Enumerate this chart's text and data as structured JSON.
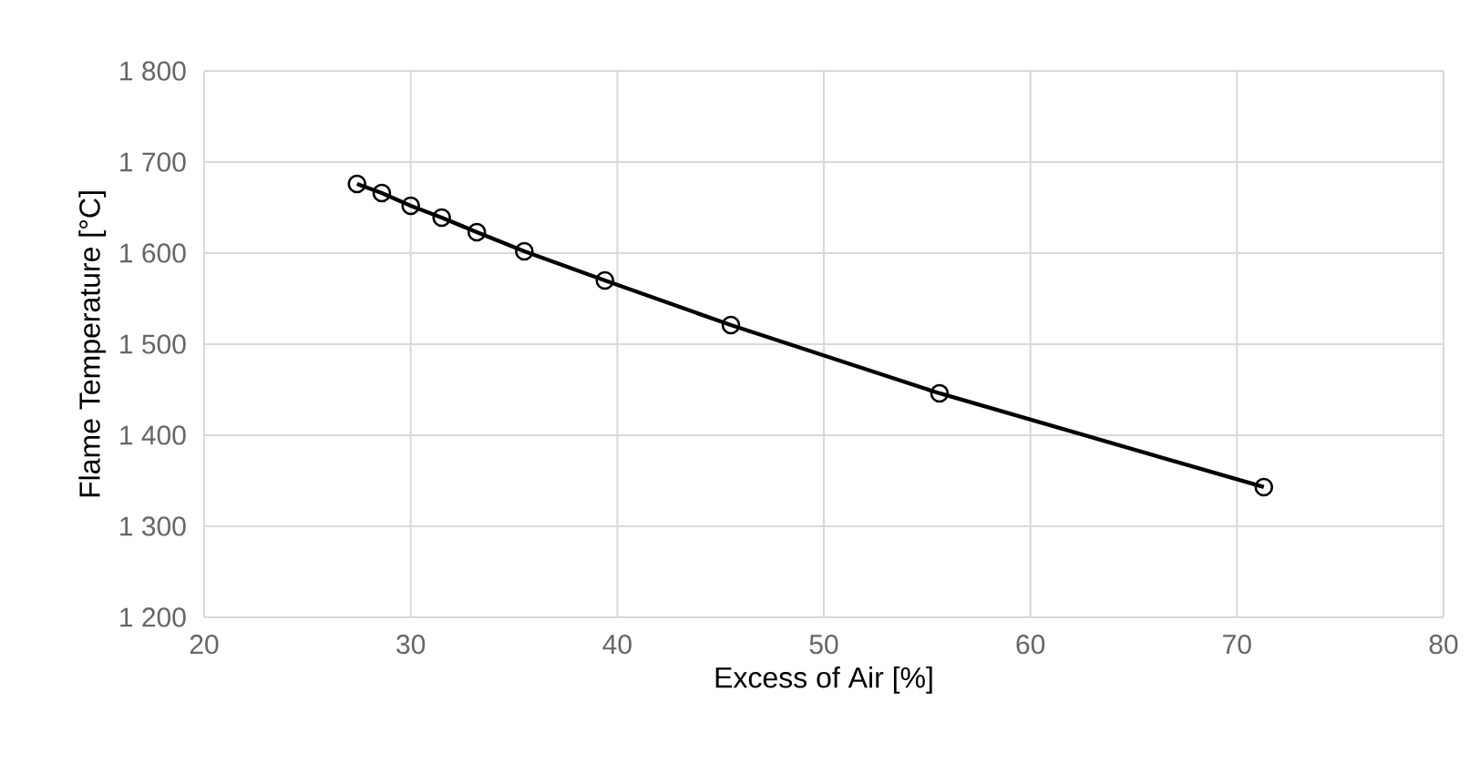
{
  "chart_data": {
    "type": "line",
    "xlabel": "Excess of Air [%]",
    "ylabel": "Flame Temperature [°C]",
    "xlim": [
      20,
      80
    ],
    "xticks": [
      20,
      30,
      40,
      50,
      60,
      70,
      80
    ],
    "ylim": [
      1200,
      1800
    ],
    "yticks": [
      {
        "value": 1200,
        "label": "1 200"
      },
      {
        "value": 1300,
        "label": "1 300"
      },
      {
        "value": 1400,
        "label": "1 400"
      },
      {
        "value": 1500,
        "label": "1 500"
      },
      {
        "value": 1600,
        "label": "1 600"
      },
      {
        "value": 1700,
        "label": "1 700"
      },
      {
        "value": 1800,
        "label": "1 800"
      }
    ],
    "grid": true,
    "marker": "circle",
    "line_style": "solid",
    "x": [
      27.4,
      28.6,
      30.0,
      31.5,
      33.2,
      35.5,
      39.4,
      45.5,
      55.6,
      71.3
    ],
    "series": [
      {
        "color": "#000000",
        "values": [
          1676,
          1666,
          1652,
          1639,
          1623,
          1602,
          1570,
          1521,
          1446,
          1343
        ]
      }
    ]
  }
}
